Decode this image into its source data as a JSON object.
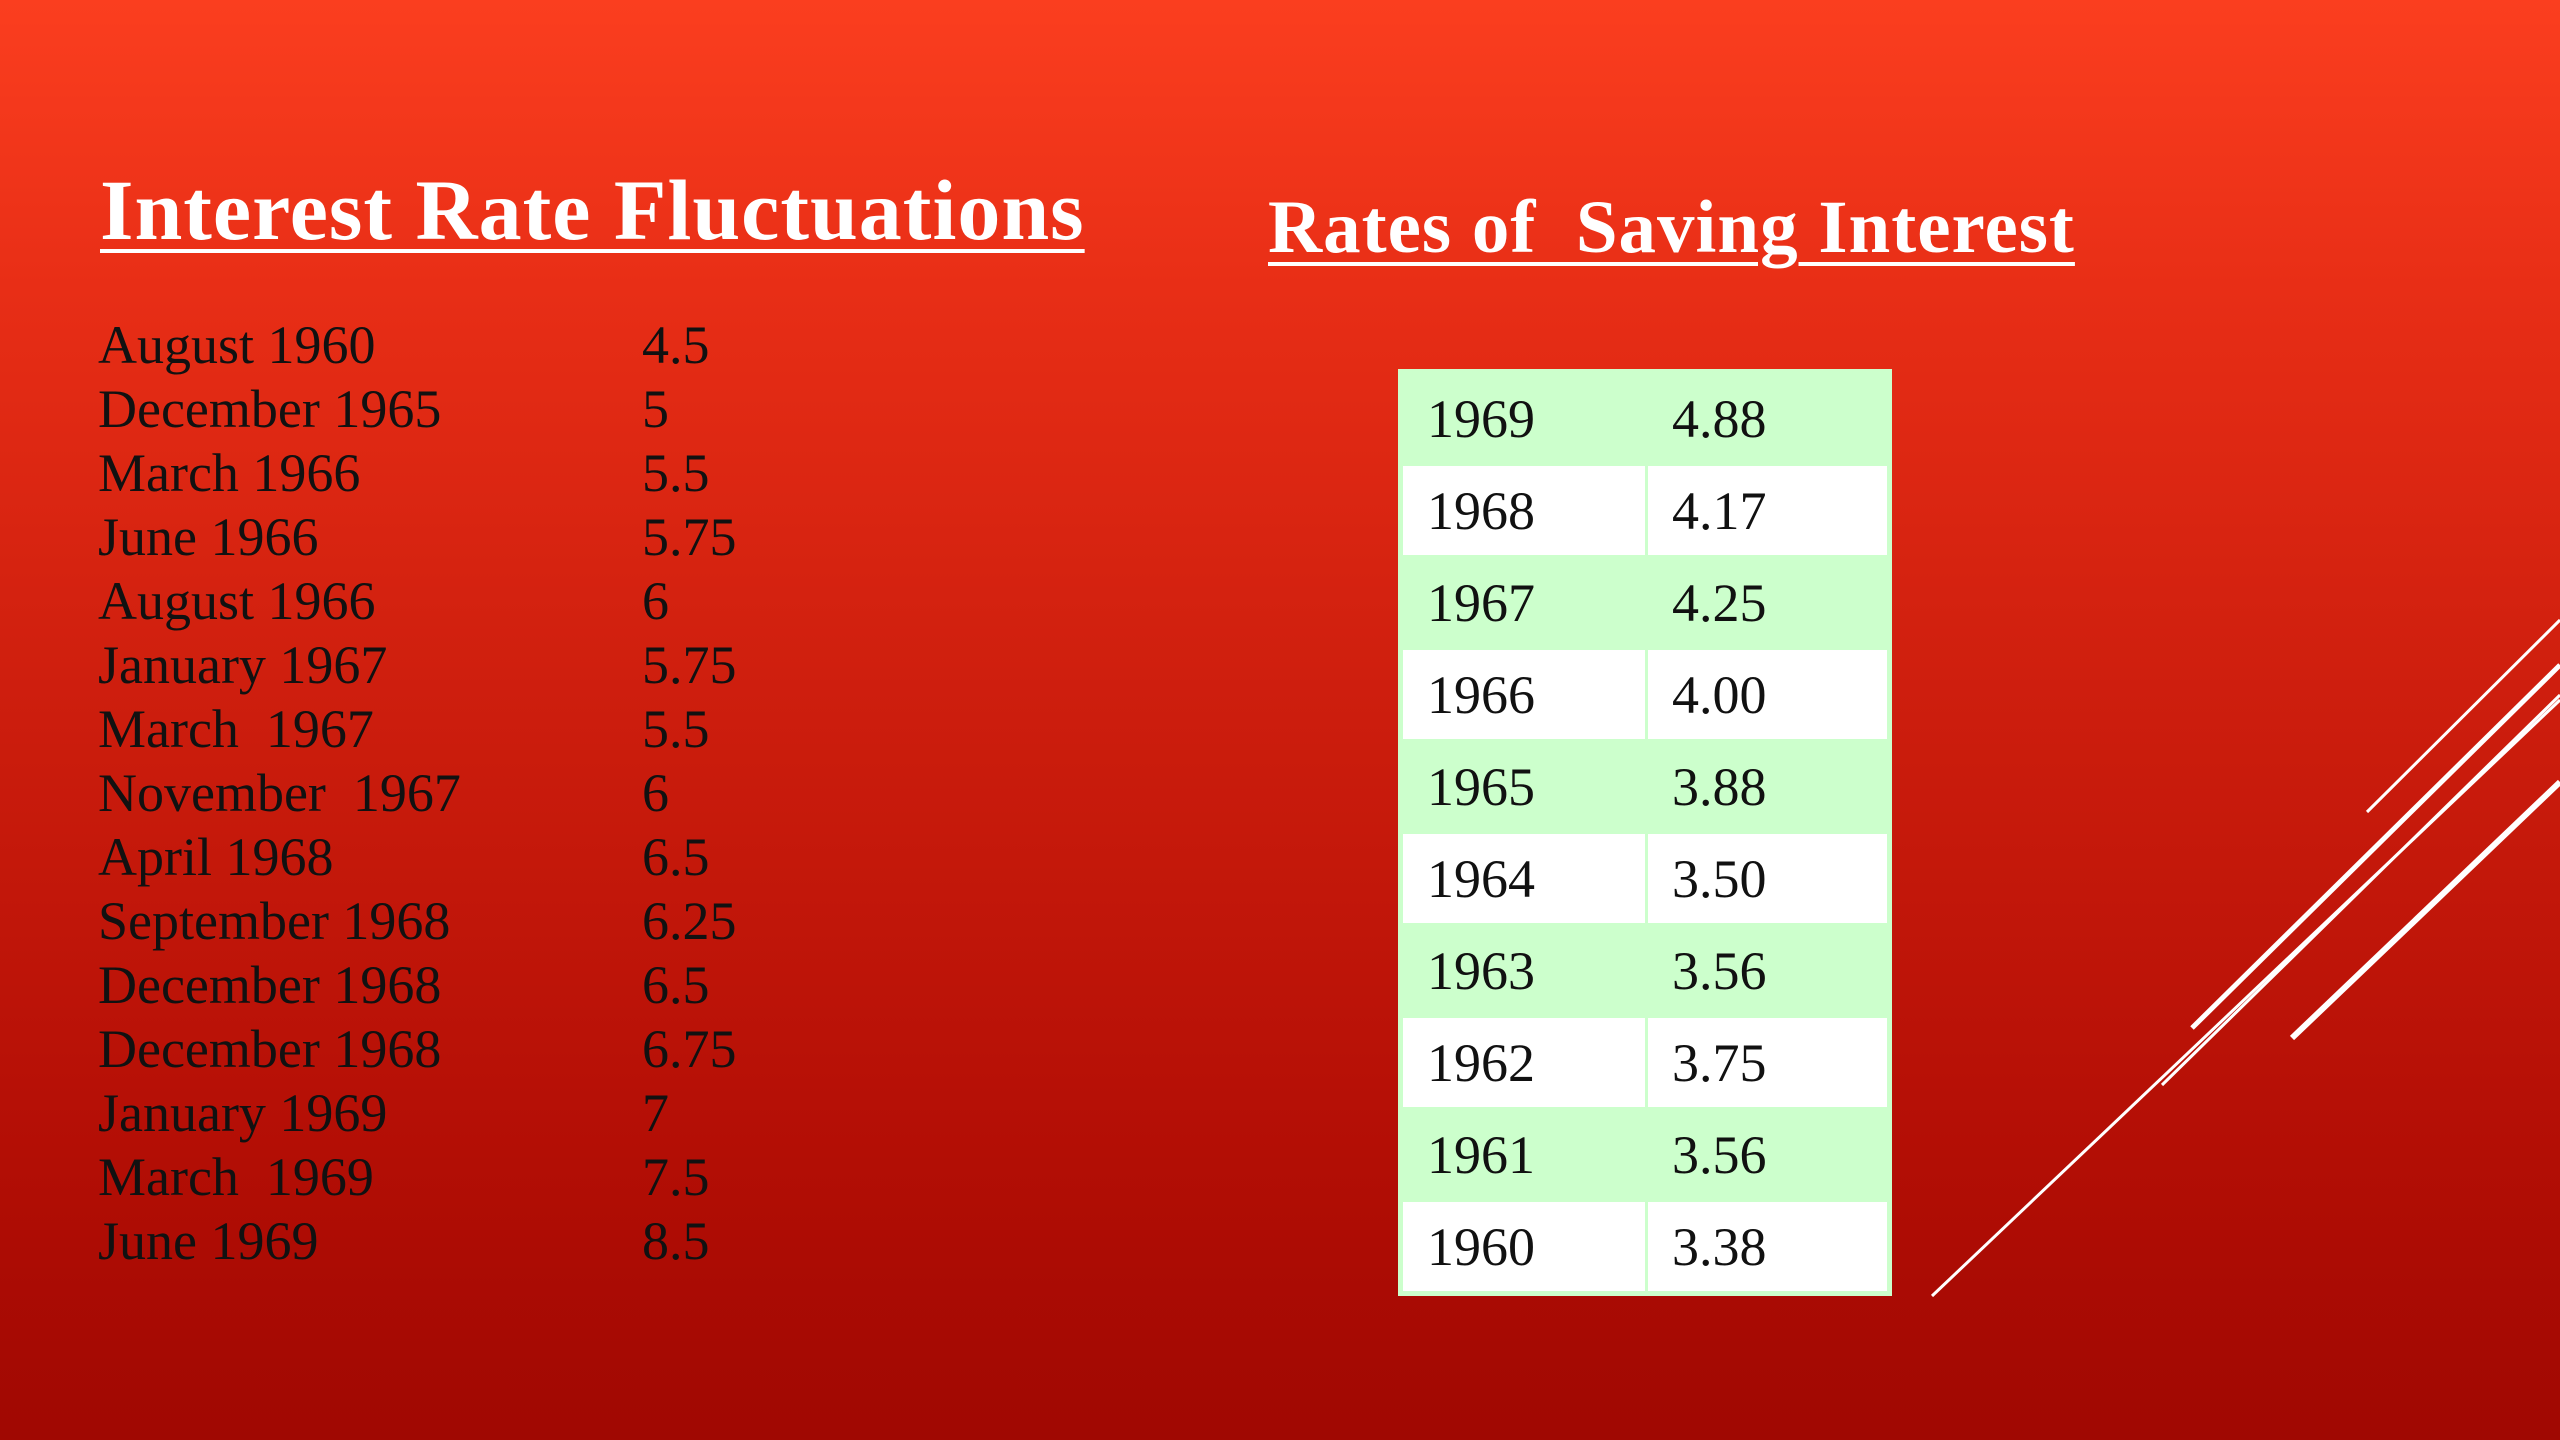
{
  "left_title": "Interest Rate Fluctuations",
  "right_title": "Rates of  Saving Interest",
  "rate_changes": [
    {
      "period": "August 1960",
      "rate": "4.5"
    },
    {
      "period": "December 1965",
      "rate": "5"
    },
    {
      "period": "March 1966",
      "rate": "5.5"
    },
    {
      "period": "June 1966",
      "rate": "5.75"
    },
    {
      "period": "August 1966",
      "rate": "6"
    },
    {
      "period": "January 1967",
      "rate": "5.75"
    },
    {
      "period": "March  1967",
      "rate": "5.5"
    },
    {
      "period": "November  1967",
      "rate": "6"
    },
    {
      "period": "April 1968",
      "rate": "6.5"
    },
    {
      "period": "September 1968",
      "rate": "6.25"
    },
    {
      "period": "December 1968",
      "rate": "6.5"
    },
    {
      "period": "December 1968",
      "rate": "6.75"
    },
    {
      "period": "January 1969",
      "rate": "7"
    },
    {
      "period": "March  1969",
      "rate": "7.5"
    },
    {
      "period": "June 1969",
      "rate": "8.5"
    }
  ],
  "saving_rates": [
    {
      "year": "1969",
      "rate": "4.88"
    },
    {
      "year": "1968",
      "rate": "4.17"
    },
    {
      "year": "1967",
      "rate": "4.25"
    },
    {
      "year": "1966",
      "rate": "4.00"
    },
    {
      "year": "1965",
      "rate": "3.88"
    },
    {
      "year": "1964",
      "rate": "3.50"
    },
    {
      "year": "1963",
      "rate": "3.56"
    },
    {
      "year": "1962",
      "rate": "3.75"
    },
    {
      "year": "1961",
      "rate": "3.56"
    },
    {
      "year": "1960",
      "rate": "3.38"
    }
  ],
  "colors": {
    "background_top": "#fb3e1f",
    "background_bottom": "#a00802",
    "title_text": "#ffffff",
    "body_text": "#111111",
    "table_band": "#ccffcc",
    "table_alt": "#ffffff",
    "decor_lines": "#ffffff"
  }
}
